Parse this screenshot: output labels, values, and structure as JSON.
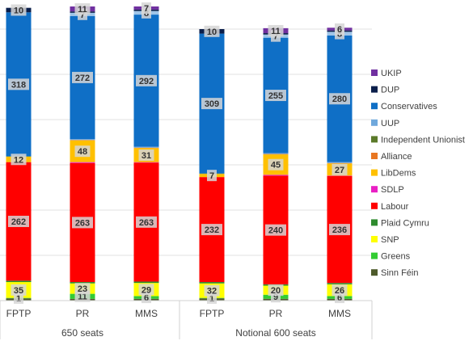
{
  "chart_data": {
    "type": "stacked-bar",
    "title": "",
    "xlabel": "",
    "ylabel": "",
    "ylim": [
      0,
      650
    ],
    "grid": true,
    "legend_position": "right",
    "groups": [
      {
        "label": "650 seats",
        "categories": [
          "FPTP",
          "PR",
          "MMS"
        ]
      },
      {
        "label": "Notional 600 seats",
        "categories": [
          "FPTP",
          "PR",
          "MMS"
        ]
      }
    ],
    "categories": [
      "FPTP",
      "PR",
      "MMS",
      "FPTP",
      "PR",
      "MMS"
    ],
    "series": [
      {
        "name": "Sinn Féin",
        "color": "#4d5a2a",
        "values": [
          5,
          4,
          4,
          5,
          4,
          4
        ],
        "labels": [
          "",
          "",
          "",
          "",
          "",
          ""
        ]
      },
      {
        "name": "Greens",
        "color": "#33cc33",
        "values": [
          1,
          11,
          6,
          1,
          9,
          6
        ],
        "labels": [
          "1",
          "11",
          "6",
          "1",
          "9",
          "6"
        ]
      },
      {
        "name": "SNP",
        "color": "#ffff00",
        "values": [
          35,
          23,
          29,
          32,
          20,
          26
        ],
        "labels": [
          "35",
          "23",
          "29",
          "32",
          "20",
          "26"
        ]
      },
      {
        "name": "Plaid Cymru",
        "color": "#2e8b2e",
        "values": [
          3,
          3,
          3,
          3,
          3,
          3
        ],
        "labels": [
          "",
          "",
          "",
          "",
          "",
          ""
        ]
      },
      {
        "name": "Labour",
        "color": "#ff0000",
        "values": [
          262,
          263,
          263,
          232,
          240,
          236
        ],
        "labels": [
          "262",
          "263",
          "263",
          "232",
          "240",
          "236"
        ]
      },
      {
        "name": "SDLP",
        "color": "#e91fc4",
        "values": [
          0,
          2,
          1,
          0,
          2,
          1
        ],
        "labels": [
          "",
          "",
          "",
          "",
          "",
          ""
        ]
      },
      {
        "name": "LibDems",
        "color": "#ffc000",
        "values": [
          12,
          48,
          31,
          7,
          45,
          27
        ],
        "labels": [
          "12",
          "48",
          "31",
          "7",
          "45",
          "27"
        ]
      },
      {
        "name": "Alliance",
        "color": "#e87722",
        "values": [
          0,
          1,
          1,
          0,
          1,
          1
        ],
        "labels": [
          "",
          "",
          "",
          "",
          "",
          ""
        ]
      },
      {
        "name": "Independent Unionist",
        "color": "#5b7a2a",
        "values": [
          1,
          0,
          0,
          1,
          0,
          0
        ],
        "labels": [
          "",
          "",
          "",
          "",
          "",
          ""
        ]
      },
      {
        "name": "UUP",
        "color": "#6fa8dc",
        "values": [
          0,
          2,
          2,
          0,
          2,
          2
        ],
        "labels": [
          "",
          "",
          "",
          "",
          "",
          ""
        ]
      },
      {
        "name": "Conservatives",
        "color": "#0f6fc6",
        "values": [
          318,
          272,
          292,
          309,
          255,
          280
        ],
        "labels": [
          "318",
          "272",
          "292",
          "309",
          "255",
          "280"
        ]
      },
      {
        "name": "UUP",
        "color": "#9fc5e8",
        "values": [
          0,
          7,
          8,
          0,
          7,
          8
        ],
        "labels": [
          "",
          "7",
          "8",
          "",
          "7",
          "8"
        ]
      },
      {
        "name": "DUP",
        "color": "#0b1f4b",
        "values": [
          10,
          3,
          3,
          10,
          3,
          3
        ],
        "labels": [
          "10",
          "",
          "",
          "10",
          "",
          ""
        ]
      },
      {
        "name": "UKIP",
        "color": "#7030a0",
        "values": [
          0,
          11,
          7,
          0,
          11,
          6
        ],
        "labels": [
          "",
          "11",
          "7",
          "",
          "11",
          "6"
        ]
      }
    ],
    "legend": [
      {
        "name": "UKIP",
        "color": "#7030a0"
      },
      {
        "name": "DUP",
        "color": "#0b1f4b"
      },
      {
        "name": "Conservatives",
        "color": "#0f6fc6"
      },
      {
        "name": "UUP",
        "color": "#6fa8dc"
      },
      {
        "name": "Independent Unionist",
        "color": "#5b7a2a"
      },
      {
        "name": "Alliance",
        "color": "#e87722"
      },
      {
        "name": "LibDems",
        "color": "#ffc000"
      },
      {
        "name": "SDLP",
        "color": "#e91fc4"
      },
      {
        "name": "Labour",
        "color": "#ff0000"
      },
      {
        "name": "Plaid Cymru",
        "color": "#2e8b2e"
      },
      {
        "name": "SNP",
        "color": "#ffff00"
      },
      {
        "name": "Greens",
        "color": "#33cc33"
      },
      {
        "name": "Sinn Féin",
        "color": "#4d5a2a"
      }
    ]
  }
}
